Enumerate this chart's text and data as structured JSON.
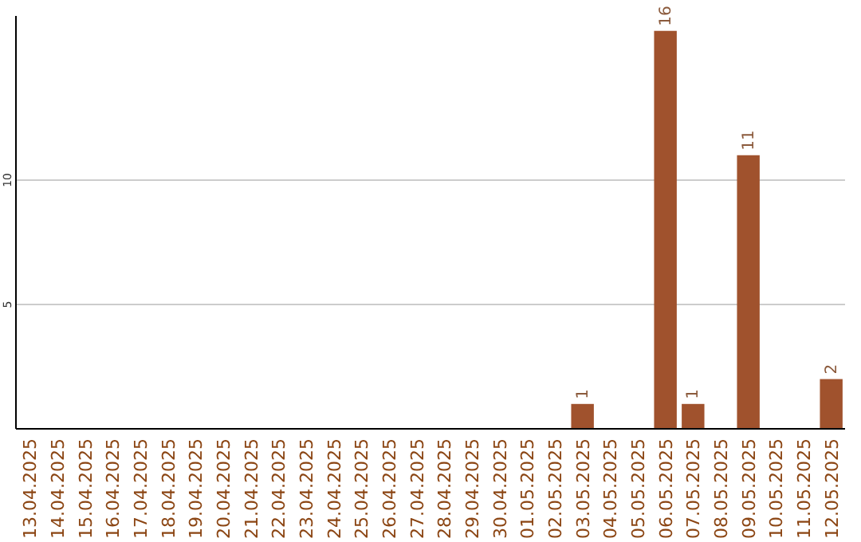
{
  "chart_data": {
    "type": "bar",
    "categories": [
      "13.04.2025",
      "14.04.2025",
      "15.04.2025",
      "16.04.2025",
      "17.04.2025",
      "18.04.2025",
      "19.04.2025",
      "20.04.2025",
      "21.04.2025",
      "22.04.2025",
      "23.04.2025",
      "24.04.2025",
      "25.04.2025",
      "26.04.2025",
      "27.04.2025",
      "28.04.2025",
      "29.04.2025",
      "30.04.2025",
      "01.05.2025",
      "02.05.2025",
      "03.05.2025",
      "04.05.2025",
      "05.05.2025",
      "06.05.2025",
      "07.05.2025",
      "08.05.2025",
      "09.05.2025",
      "10.05.2025",
      "11.05.2025",
      "12.05.2025"
    ],
    "values": [
      0,
      0,
      0,
      0,
      0,
      0,
      0,
      0,
      0,
      0,
      0,
      0,
      0,
      0,
      0,
      0,
      0,
      0,
      0,
      0,
      1,
      0,
      0,
      16,
      1,
      0,
      11,
      0,
      0,
      2
    ],
    "value_labels": [
      null,
      null,
      null,
      null,
      null,
      null,
      null,
      null,
      null,
      null,
      null,
      null,
      null,
      null,
      null,
      null,
      null,
      null,
      null,
      null,
      "1",
      null,
      null,
      "16",
      "1",
      null,
      "11",
      null,
      null,
      "2"
    ],
    "color": "#a0522d",
    "ylim": [
      0,
      16.6
    ],
    "yticks": [
      5,
      10
    ],
    "grid": "y"
  }
}
